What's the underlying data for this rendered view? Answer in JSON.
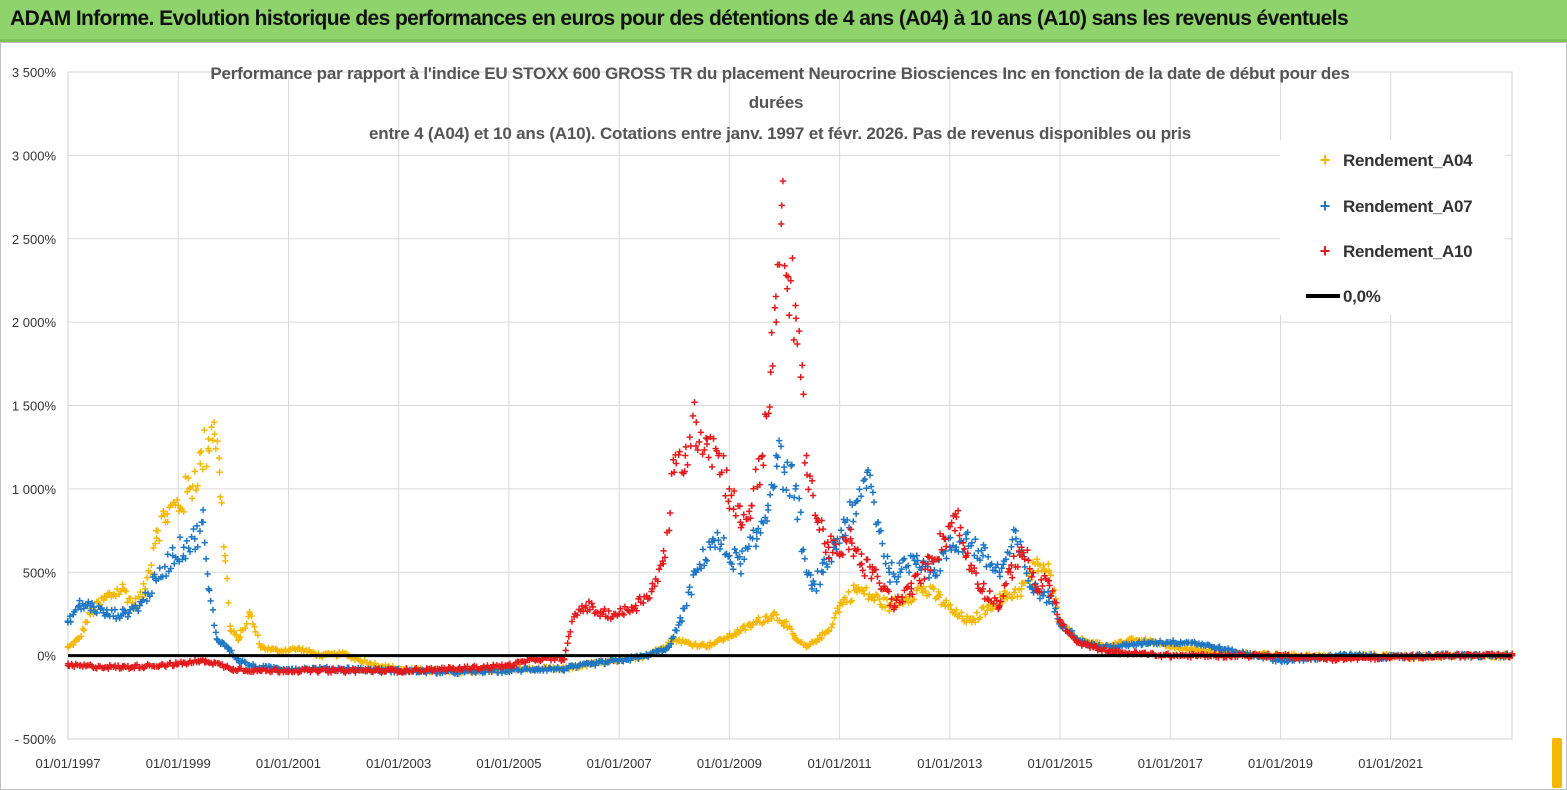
{
  "header": {
    "title": "ADAM Informe. Evolution historique des performances en euros pour des détentions de 4 ans (A04) à 10 ans (A10) sans les revenus éventuels"
  },
  "colors": {
    "banner": "#8ed36b",
    "a04": "#f5b800",
    "a07": "#1f77c4",
    "a10": "#e31a1c",
    "zero": "#000000",
    "grid": "#d9d9d9"
  },
  "chart_data": {
    "type": "scatter",
    "title_lines": [
      "Performance par rapport à l'indice EU STOXX 600 GROSS TR  du placement Neurocrine Biosciences Inc en fonction de la date de début pour des",
      "durées",
      "entre 4 (A04) et 10 ans (A10). Cotations entre janv. 1997 et févr. 2026. Pas de revenus disponibles ou pris"
    ],
    "xlabel": "",
    "ylabel": "",
    "xlim": [
      1997.0,
      2023.2
    ],
    "ylim": [
      -500,
      3500
    ],
    "y_ticks": [
      -500,
      0,
      500,
      1000,
      1500,
      2000,
      2500,
      3000,
      3500
    ],
    "y_tick_labels": [
      "- 500%",
      "0%",
      "500%",
      "1 000%",
      "1 500%",
      "2 000%",
      "2 500%",
      "3 000%",
      "3 500%"
    ],
    "x_ticks": [
      1997,
      1999,
      2001,
      2003,
      2005,
      2007,
      2009,
      2011,
      2013,
      2015,
      2017,
      2019,
      2021
    ],
    "x_tick_labels": [
      "01/01/1997",
      "01/01/1999",
      "01/01/2001",
      "01/01/2003",
      "01/01/2005",
      "01/01/2007",
      "01/01/2009",
      "01/01/2011",
      "01/01/2013",
      "01/01/2015",
      "01/01/2017",
      "01/01/2019",
      "01/01/2021"
    ],
    "legend_position": "top-right",
    "series": [
      {
        "name": "Rendement_A04",
        "marker": "plus",
        "x": [
          1997.0,
          1997.2,
          1997.4,
          1997.7,
          1998.0,
          1998.2,
          1998.4,
          1998.6,
          1998.8,
          1999.0,
          1999.2,
          1999.4,
          1999.55,
          1999.65,
          1999.75,
          1999.85,
          1999.95,
          2000.1,
          2000.3,
          2000.5,
          2000.8,
          2001.2,
          2001.6,
          2002.0,
          2002.5,
          2003.0,
          2004.0,
          2005.0,
          2006.0,
          2006.5,
          2007.0,
          2007.5,
          2007.8,
          2008.0,
          2008.3,
          2008.6,
          2008.9,
          2009.2,
          2009.5,
          2009.8,
          2010.0,
          2010.2,
          2010.4,
          2010.6,
          2010.8,
          2011.0,
          2011.3,
          2011.6,
          2011.9,
          2012.2,
          2012.5,
          2012.8,
          2013.1,
          2013.4,
          2013.7,
          2014.0,
          2014.3,
          2014.6,
          2014.8,
          2015.0,
          2015.3,
          2015.6,
          2015.9,
          2016.3,
          2016.7,
          2017.0,
          2017.5,
          2018.0,
          2018.5,
          2019.0,
          2019.5,
          2020.0,
          2020.5,
          2021.0,
          2021.5,
          2022.0,
          2022.5,
          2023.0,
          2023.2
        ],
        "y": [
          50,
          100,
          250,
          350,
          400,
          300,
          400,
          750,
          850,
          900,
          1000,
          1150,
          1300,
          1400,
          1100,
          600,
          150,
          100,
          250,
          50,
          30,
          40,
          0,
          10,
          -50,
          -80,
          -100,
          -80,
          -80,
          -50,
          -30,
          0,
          50,
          100,
          70,
          60,
          100,
          150,
          200,
          250,
          200,
          100,
          50,
          100,
          150,
          300,
          400,
          350,
          300,
          350,
          400,
          350,
          250,
          200,
          300,
          350,
          400,
          550,
          500,
          200,
          100,
          80,
          50,
          100,
          80,
          50,
          30,
          20,
          10,
          0,
          0,
          -10,
          0,
          0,
          -10,
          0,
          0,
          0,
          0
        ]
      },
      {
        "name": "Rendement_A07",
        "marker": "plus",
        "x": [
          1997.0,
          1997.2,
          1997.4,
          1997.7,
          1998.0,
          1998.3,
          1998.6,
          1998.9,
          1999.1,
          1999.3,
          1999.45,
          1999.55,
          1999.7,
          1999.9,
          2000.1,
          2000.4,
          2001.0,
          2002.0,
          2003.0,
          2004.0,
          2005.0,
          2005.5,
          2006.0,
          2006.5,
          2007.0,
          2007.5,
          2007.9,
          2008.1,
          2008.4,
          2008.7,
          2009.0,
          2009.2,
          2009.5,
          2009.7,
          2009.85,
          2010.0,
          2010.2,
          2010.4,
          2010.5,
          2010.7,
          2010.9,
          2011.1,
          2011.3,
          2011.5,
          2011.7,
          2011.9,
          2012.1,
          2012.4,
          2012.7,
          2013.0,
          2013.3,
          2013.6,
          2013.9,
          2014.2,
          2014.5,
          2014.8,
          2015.0,
          2015.4,
          2015.8,
          2016.2,
          2016.6,
          2017.0,
          2017.4,
          2017.8,
          2018.2,
          2018.6,
          2019.0,
          2019.5,
          2020.0,
          2020.5,
          2021.0,
          2021.5,
          2022.0,
          2022.5,
          2023.0,
          2023.2
        ],
        "y": [
          200,
          300,
          300,
          250,
          250,
          300,
          450,
          600,
          650,
          700,
          800,
          400,
          100,
          50,
          -30,
          -70,
          -80,
          -80,
          -90,
          -100,
          -90,
          -80,
          -80,
          -50,
          -30,
          0,
          50,
          200,
          500,
          700,
          600,
          550,
          700,
          900,
          1200,
          1100,
          1000,
          500,
          400,
          500,
          650,
          800,
          850,
          1100,
          800,
          500,
          500,
          600,
          500,
          650,
          700,
          600,
          500,
          700,
          400,
          350,
          200,
          80,
          50,
          60,
          80,
          80,
          80,
          50,
          20,
          0,
          -30,
          -20,
          0,
          0,
          -10,
          0,
          0,
          0,
          0,
          0
        ]
      },
      {
        "name": "Rendement_A10",
        "marker": "plus",
        "x": [
          1997.0,
          1998.0,
          1999.0,
          1999.5,
          2000.0,
          2000.5,
          2001.0,
          2002.0,
          2003.0,
          2004.0,
          2005.0,
          2005.5,
          2006.0,
          2006.2,
          2006.4,
          2006.7,
          2007.0,
          2007.3,
          2007.6,
          2007.8,
          2008.0,
          2008.2,
          2008.4,
          2008.6,
          2008.8,
          2009.0,
          2009.2,
          2009.4,
          2009.6,
          2009.75,
          2009.85,
          2009.95,
          2010.05,
          2010.2,
          2010.4,
          2010.6,
          2010.8,
          2011.0,
          2011.2,
          2011.4,
          2011.6,
          2011.8,
          2012.0,
          2012.3,
          2012.6,
          2012.9,
          2013.1,
          2013.3,
          2013.6,
          2013.9,
          2014.1,
          2014.3,
          2014.6,
          2014.8,
          2015.0,
          2015.3,
          2015.6,
          2016.0,
          2016.5,
          2017.0,
          2018.0,
          2019.0,
          2020.0,
          2021.0,
          2022.0,
          2023.0,
          2023.2
        ],
        "y": [
          -60,
          -70,
          -50,
          -30,
          -80,
          -90,
          -90,
          -90,
          -90,
          -80,
          -60,
          -20,
          -20,
          250,
          300,
          250,
          250,
          300,
          400,
          550,
          1100,
          1200,
          1400,
          1300,
          1200,
          1000,
          800,
          900,
          1200,
          1700,
          2000,
          2700,
          2200,
          2100,
          1200,
          800,
          650,
          600,
          700,
          550,
          500,
          400,
          300,
          400,
          550,
          700,
          850,
          600,
          400,
          300,
          500,
          650,
          400,
          450,
          200,
          80,
          50,
          20,
          10,
          0,
          0,
          0,
          -20,
          -10,
          0,
          0,
          0
        ]
      },
      {
        "name": "0,0%",
        "marker": "line",
        "x": [
          1997.0,
          2023.2
        ],
        "y": [
          0,
          0
        ]
      }
    ]
  }
}
